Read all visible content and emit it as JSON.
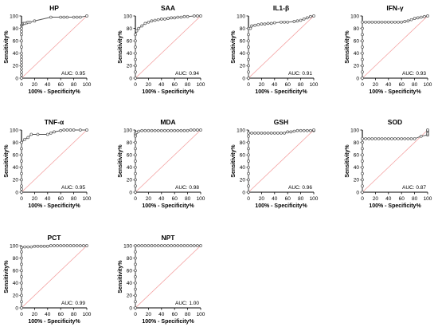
{
  "axes": {
    "xlabel": "100% - Specificity%",
    "ylabel": "Sensitivity%",
    "xlim": [
      0,
      100
    ],
    "ylim": [
      0,
      100
    ],
    "xticks": [
      0,
      20,
      40,
      60,
      80,
      100
    ],
    "yticks": [
      0,
      20,
      40,
      60,
      80,
      100
    ],
    "curve_color": "#555555",
    "reference_line_color": "#f4a0a0"
  },
  "chart_data": [
    {
      "type": "line",
      "title": "HP",
      "annotation": "AUC: 0.95",
      "x": [
        0,
        0,
        0,
        0,
        0,
        0,
        0,
        0,
        0,
        0,
        0,
        0,
        0,
        0,
        0,
        1,
        2,
        3,
        5,
        8,
        10,
        13,
        20,
        45,
        60,
        65,
        70,
        80,
        85,
        90,
        100
      ],
      "y": [
        0,
        5,
        10,
        15,
        20,
        25,
        30,
        35,
        40,
        50,
        60,
        70,
        75,
        80,
        85,
        86,
        87,
        88,
        88,
        89,
        90,
        90,
        92,
        98,
        98,
        98,
        98,
        98,
        98,
        98,
        100
      ]
    },
    {
      "type": "line",
      "title": "SAA",
      "annotation": "AUC: 0.94",
      "x": [
        0,
        0,
        0,
        0,
        0,
        0,
        0,
        0,
        2,
        5,
        10,
        15,
        20,
        25,
        30,
        35,
        40,
        45,
        50,
        55,
        60,
        65,
        70,
        75,
        80,
        90,
        95,
        100
      ],
      "y": [
        0,
        10,
        20,
        30,
        40,
        50,
        60,
        70,
        76,
        80,
        84,
        88,
        90,
        92,
        93,
        94,
        95,
        95,
        96,
        97,
        97,
        98,
        98,
        99,
        99,
        100,
        100,
        100
      ]
    },
    {
      "type": "line",
      "title": "IL1-β",
      "annotation": "AUC: 0.91",
      "x": [
        0,
        0,
        0,
        0,
        0,
        0,
        0,
        0,
        0,
        3,
        5,
        10,
        15,
        20,
        25,
        30,
        35,
        40,
        50,
        55,
        60,
        70,
        75,
        80,
        85,
        90,
        95,
        100
      ],
      "y": [
        0,
        10,
        20,
        30,
        40,
        50,
        60,
        70,
        80,
        80,
        84,
        85,
        86,
        87,
        87,
        88,
        88,
        89,
        90,
        90,
        90,
        91,
        92,
        93,
        95,
        97,
        99,
        100
      ]
    },
    {
      "type": "line",
      "title": "IFN-γ",
      "annotation": "AUC: 0.93",
      "x": [
        0,
        0,
        0,
        0,
        0,
        0,
        0,
        0,
        0,
        0,
        5,
        10,
        15,
        20,
        25,
        30,
        35,
        40,
        45,
        50,
        55,
        60,
        65,
        70,
        75,
        80,
        85,
        90,
        95,
        100
      ],
      "y": [
        0,
        10,
        20,
        30,
        40,
        50,
        60,
        70,
        80,
        90,
        90,
        90,
        90,
        90,
        90,
        90,
        90,
        90,
        90,
        90,
        90,
        90,
        91,
        92,
        94,
        96,
        97,
        98,
        99,
        100
      ]
    },
    {
      "type": "line",
      "title": "TNF-α",
      "annotation": "AUC: 0.95",
      "x": [
        0,
        0,
        0,
        0,
        0,
        0,
        0,
        0,
        0,
        0,
        5,
        10,
        15,
        25,
        40,
        45,
        50,
        60,
        65,
        70,
        75,
        80,
        90,
        100
      ],
      "y": [
        0,
        5,
        10,
        20,
        30,
        40,
        50,
        60,
        70,
        80,
        85,
        88,
        93,
        93,
        93,
        95,
        97,
        99,
        100,
        100,
        100,
        100,
        100,
        100
      ]
    },
    {
      "type": "line",
      "title": "MDA",
      "annotation": "AUC: 0.98",
      "x": [
        0,
        0,
        0,
        0,
        0,
        0,
        0,
        0,
        0,
        0,
        0,
        0,
        2,
        5,
        10,
        15,
        20,
        25,
        30,
        35,
        40,
        45,
        50,
        55,
        60,
        65,
        70,
        75,
        80,
        85,
        90,
        95,
        100
      ],
      "y": [
        0,
        10,
        20,
        30,
        40,
        50,
        60,
        70,
        80,
        90,
        93,
        95,
        96,
        98,
        99,
        99,
        99,
        99,
        99,
        99,
        99,
        99,
        99,
        99,
        99,
        99,
        99,
        99,
        99,
        100,
        100,
        100,
        100
      ]
    },
    {
      "type": "line",
      "title": "GSH",
      "annotation": "AUC: 0.96",
      "x": [
        0,
        0,
        0,
        0,
        0,
        0,
        0,
        0,
        0,
        0,
        0,
        5,
        10,
        15,
        20,
        25,
        30,
        35,
        40,
        45,
        50,
        55,
        60,
        65,
        70,
        75,
        80,
        85,
        90,
        95,
        100,
        100
      ],
      "y": [
        0,
        10,
        20,
        30,
        40,
        50,
        60,
        70,
        80,
        90,
        95,
        95,
        95,
        95,
        95,
        95,
        95,
        95,
        95,
        95,
        95,
        95,
        97,
        97,
        98,
        99,
        99,
        99,
        99,
        99,
        99,
        100
      ]
    },
    {
      "type": "line",
      "title": "SOD",
      "annotation": "AUC: 0.87",
      "x": [
        0,
        0,
        0,
        0,
        0,
        0,
        0,
        0,
        0,
        0,
        5,
        10,
        15,
        20,
        25,
        30,
        35,
        40,
        45,
        50,
        55,
        60,
        65,
        70,
        75,
        80,
        90,
        100,
        100,
        100,
        100,
        100
      ],
      "y": [
        0,
        10,
        20,
        30,
        40,
        50,
        60,
        70,
        80,
        86,
        86,
        86,
        86,
        86,
        86,
        86,
        86,
        86,
        86,
        86,
        86,
        86,
        86,
        86,
        86,
        86,
        90,
        92,
        94,
        97,
        99,
        100
      ]
    },
    {
      "type": "line",
      "title": "PCT",
      "annotation": "AUC: 0.99",
      "x": [
        0,
        0,
        0,
        0,
        0,
        0,
        0,
        0,
        0,
        0,
        0,
        5,
        10,
        15,
        20,
        25,
        30,
        35,
        40,
        45,
        50,
        55,
        60,
        65,
        70,
        75,
        80,
        85,
        90,
        95,
        100
      ],
      "y": [
        0,
        10,
        20,
        30,
        40,
        50,
        60,
        70,
        80,
        90,
        97,
        98,
        98,
        98,
        99,
        99,
        99,
        99,
        99,
        100,
        100,
        100,
        100,
        100,
        100,
        100,
        100,
        100,
        100,
        100,
        100
      ]
    },
    {
      "type": "line",
      "title": "NPT",
      "annotation": "AUC: 1.00",
      "x": [
        0,
        0,
        0,
        0,
        0,
        0,
        0,
        0,
        0,
        0,
        0,
        5,
        10,
        15,
        20,
        25,
        30,
        35,
        40,
        45,
        50,
        55,
        60,
        65,
        70,
        75,
        80,
        85,
        90,
        95,
        100
      ],
      "y": [
        0,
        10,
        20,
        30,
        40,
        50,
        60,
        70,
        80,
        90,
        100,
        100,
        100,
        100,
        100,
        100,
        100,
        100,
        100,
        100,
        100,
        100,
        100,
        100,
        100,
        100,
        100,
        100,
        100,
        100,
        100
      ]
    }
  ]
}
